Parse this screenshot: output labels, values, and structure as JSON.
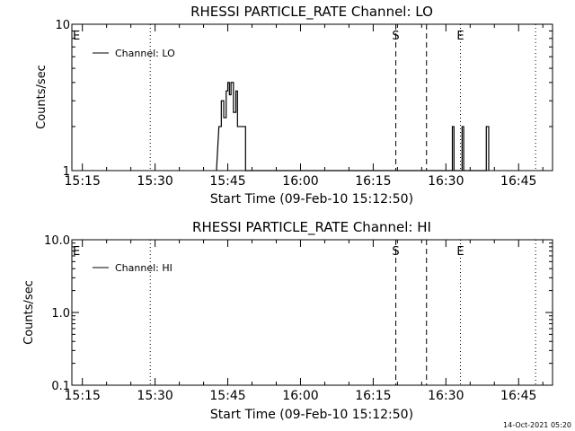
{
  "timestamp": "14-Oct-2021 05:20",
  "chart_data": [
    {
      "type": "line",
      "title": "RHESSI PARTICLE_RATE Channel: LO",
      "xlabel": "Start Time (09-Feb-10 15:12:50)",
      "ylabel": "Counts/sec",
      "yscale": "log",
      "ylim": [
        1,
        10
      ],
      "xlim": [
        "15:12:50",
        "16:52:00"
      ],
      "y_ticks": [
        "1",
        "10"
      ],
      "x_ticks": [
        "15:15",
        "15:30",
        "15:45",
        "16:00",
        "16:15",
        "16:30",
        "16:45"
      ],
      "legend": "Channel: LO",
      "legend_position": "top-left",
      "markers": [
        {
          "label": "E",
          "time": "15:12:50",
          "style": "none"
        },
        {
          "label": "",
          "time": "15:29:00",
          "style": "dotted"
        },
        {
          "label": "S",
          "time": "16:19:40",
          "style": "dashed"
        },
        {
          "label": "",
          "time": "16:26:00",
          "style": "dashed"
        },
        {
          "label": "E",
          "time": "16:33:00",
          "style": "dotted"
        },
        {
          "label": "",
          "time": "16:48:30",
          "style": "dotted"
        }
      ],
      "series": [
        {
          "values": [
            [
              "15:42:40",
              1
            ],
            [
              "15:43:10",
              2
            ],
            [
              "15:43:40",
              2
            ],
            [
              "15:43:40",
              3
            ],
            [
              "15:44:10",
              3
            ],
            [
              "15:44:10",
              2.3
            ],
            [
              "15:44:40",
              2.3
            ],
            [
              "15:44:40",
              3.5
            ],
            [
              "15:45:00",
              3.5
            ],
            [
              "15:45:00",
              4
            ],
            [
              "15:45:20",
              4
            ],
            [
              "15:45:20",
              3.3
            ],
            [
              "15:45:40",
              3.3
            ],
            [
              "15:45:40",
              4
            ],
            [
              "15:46:10",
              4
            ],
            [
              "15:46:10",
              2.5
            ],
            [
              "15:46:40",
              2.5
            ],
            [
              "15:46:40",
              3.5
            ],
            [
              "15:47:00",
              3.5
            ],
            [
              "15:47:00",
              2
            ],
            [
              "15:48:40",
              2
            ],
            [
              "15:48:40",
              1
            ],
            [
              "16:31:20",
              1
            ],
            [
              "16:31:20",
              2
            ],
            [
              "16:31:40",
              2
            ],
            [
              "16:31:40",
              1
            ],
            [
              "16:33:20",
              1
            ],
            [
              "16:33:20",
              2
            ],
            [
              "16:33:40",
              2
            ],
            [
              "16:33:40",
              1
            ],
            [
              "16:38:20",
              1
            ],
            [
              "16:38:20",
              2
            ],
            [
              "16:38:50",
              2
            ],
            [
              "16:38:50",
              1
            ]
          ]
        }
      ]
    },
    {
      "type": "line",
      "title": "RHESSI PARTICLE_RATE Channel: HI",
      "xlabel": "Start Time (09-Feb-10 15:12:50)",
      "ylabel": "Counts/sec",
      "yscale": "log",
      "ylim": [
        0.1,
        10
      ],
      "xlim": [
        "15:12:50",
        "16:52:00"
      ],
      "y_ticks": [
        "0.1",
        "1.0",
        "10.0"
      ],
      "x_ticks": [
        "15:15",
        "15:30",
        "15:45",
        "16:00",
        "16:15",
        "16:30",
        "16:45"
      ],
      "legend": "Channel: HI",
      "legend_position": "top-left",
      "markers": [
        {
          "label": "E",
          "time": "15:12:50",
          "style": "none"
        },
        {
          "label": "",
          "time": "15:29:00",
          "style": "dotted"
        },
        {
          "label": "S",
          "time": "16:19:40",
          "style": "dashed"
        },
        {
          "label": "",
          "time": "16:26:00",
          "style": "dashed"
        },
        {
          "label": "E",
          "time": "16:33:00",
          "style": "dotted"
        },
        {
          "label": "",
          "time": "16:48:30",
          "style": "dotted"
        }
      ],
      "series": [
        {
          "values": []
        }
      ]
    }
  ]
}
